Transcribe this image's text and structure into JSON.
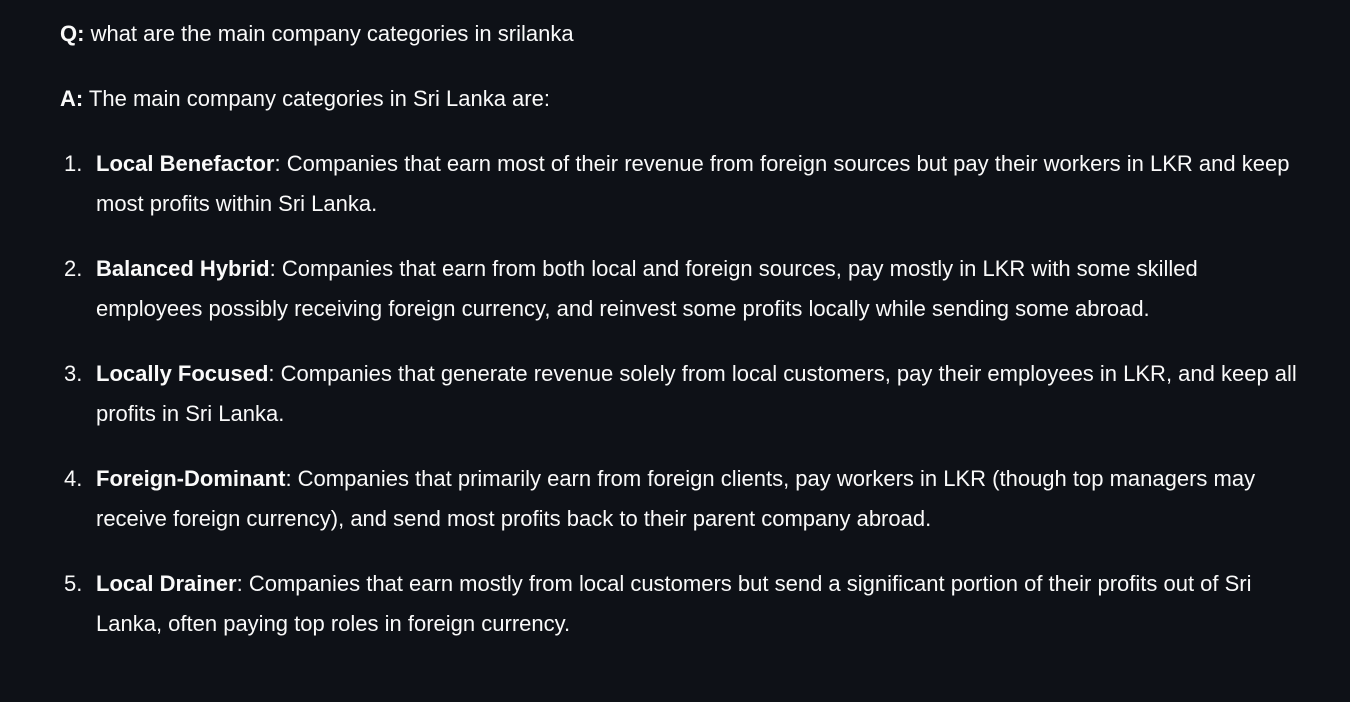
{
  "question": {
    "prefix": "Q:",
    "text": " what are the main company categories in srilanka"
  },
  "answer": {
    "prefix": "A:",
    "text": " The main company categories in Sri Lanka are:"
  },
  "categories": [
    {
      "number": "1.",
      "name": "Local Benefactor",
      "description": ": Companies that earn most of their revenue from foreign sources but pay their workers in LKR and keep most profits within Sri Lanka."
    },
    {
      "number": "2.",
      "name": "Balanced Hybrid",
      "description": ": Companies that earn from both local and foreign sources, pay mostly in LKR with some skilled employees possibly receiving foreign currency, and reinvest some profits locally while sending some abroad."
    },
    {
      "number": "3.",
      "name": "Locally Focused",
      "description": ": Companies that generate revenue solely from local customers, pay their employees in LKR, and keep all profits in Sri Lanka."
    },
    {
      "number": "4.",
      "name": "Foreign-Dominant",
      "description": ": Companies that primarily earn from foreign clients, pay workers in LKR (though top managers may receive foreign currency), and send most profits back to their parent company abroad."
    },
    {
      "number": "5.",
      "name": "Local Drainer",
      "description": ": Companies that earn mostly from local customers but send a significant portion of their profits out of Sri Lanka, often paying top roles in foreign currency."
    }
  ]
}
